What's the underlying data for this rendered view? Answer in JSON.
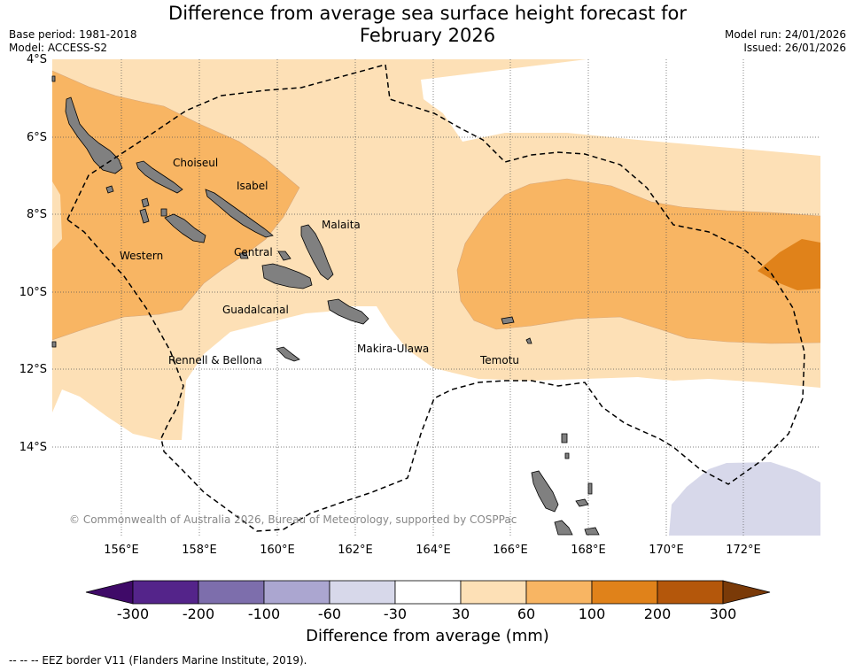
{
  "title_line1": "Difference from average sea surface height forecast for",
  "title_line2": "February 2026",
  "base_period": "Base period: 1981-2018",
  "model": "Model: ACCESS-S2",
  "model_run": "Model run: 24/01/2026",
  "issued": "Issued: 26/01/2026",
  "lat_labels": [
    "4°S",
    "6°S",
    "8°S",
    "10°S",
    "12°S",
    "14°S"
  ],
  "lon_labels": [
    "156°E",
    "158°E",
    "160°E",
    "162°E",
    "164°E",
    "166°E",
    "168°E",
    "170°E",
    "172°E"
  ],
  "regions": {
    "choiseul": "Choiseul",
    "isabel": "Isabel",
    "malaita": "Malaita",
    "western": "Western",
    "central": "Central",
    "guadalcanal": "Guadalcanal",
    "rennell": "Rennell & Bellona",
    "makira": "Makira-Ulawa",
    "temotu": "Temotu"
  },
  "copyright": "© Commonwealth of Australia 2026, Bureau of Meteorology, supported by COSPPac",
  "colorbar": {
    "ticks": [
      "-300",
      "-200",
      "-100",
      "-60",
      "-30",
      "30",
      "60",
      "100",
      "200",
      "300"
    ],
    "colors": [
      "#3f0a68",
      "#54248a",
      "#7d6eac",
      "#aba6d0",
      "#d7d8ea",
      "#ffffff",
      "#fde0b6",
      "#f8b563",
      "#e0821a",
      "#b4570b",
      "#7a3a08"
    ],
    "title": "Difference from average (mm)"
  },
  "footnote": "-- -- -- EEZ border V11 (Flanders Marine Institute, 2019).",
  "colors": {
    "light_orange": "#fde0b6",
    "mid_orange": "#f8b563",
    "dark_orange": "#e0821a",
    "light_purple": "#d7d8ea",
    "land": "#808080"
  }
}
